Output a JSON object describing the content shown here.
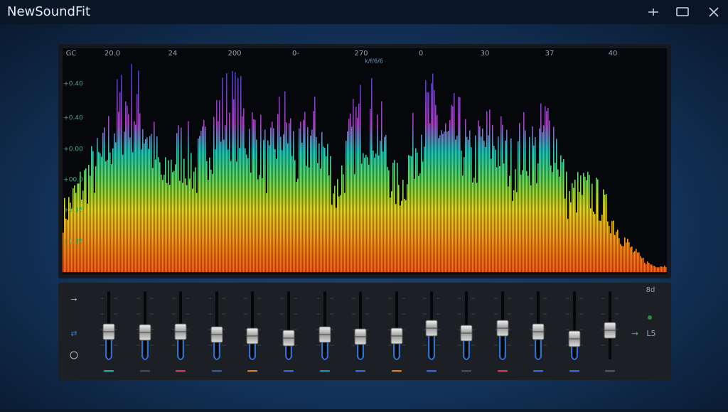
{
  "app": {
    "title": "NewSoundFit"
  },
  "spectrum": {
    "top_labels": [
      "GC",
      "20.0",
      "24",
      "200",
      "0-",
      "270",
      "0",
      "30",
      "37",
      "40"
    ],
    "subtitle": "k/f/6/6",
    "left_labels": [
      "+0.40",
      "+0.40",
      "+0.00",
      "+00.0",
      "+0.15",
      "+1.15"
    ]
  },
  "equalizer": {
    "right_labels": [
      "8d",
      "L5"
    ]
  }
}
